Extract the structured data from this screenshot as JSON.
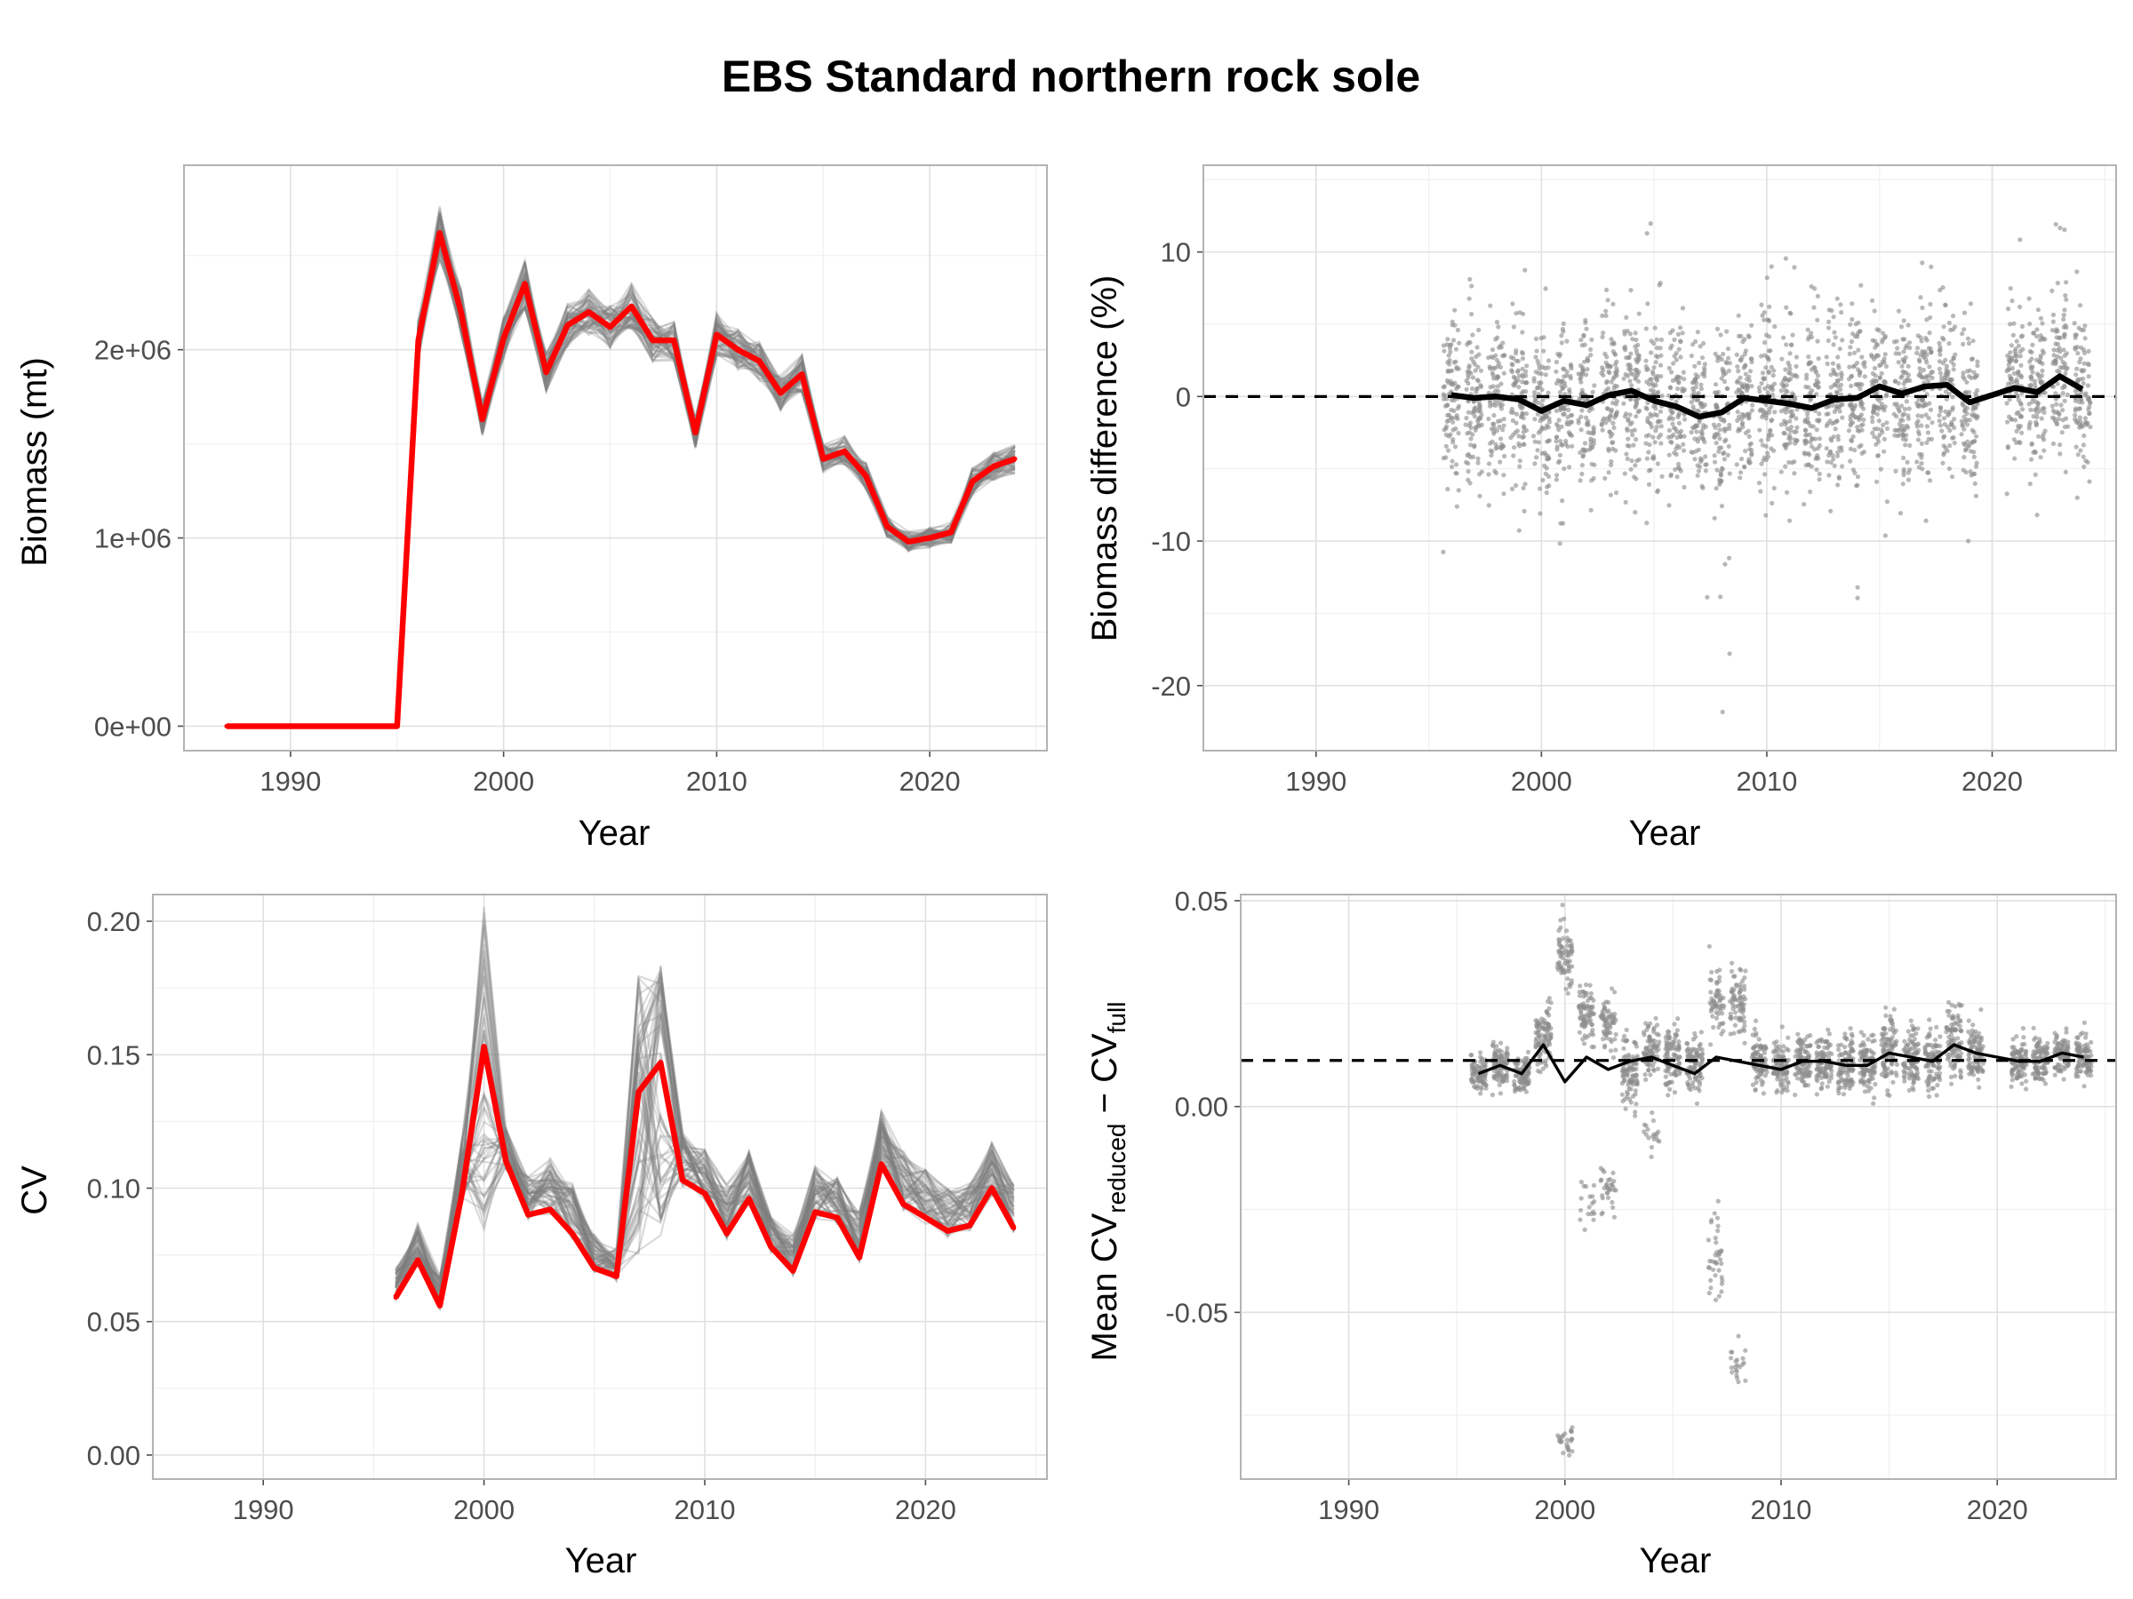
{
  "figure": {
    "title": "EBS Standard northern rock sole",
    "colors": {
      "replicate": "#7f7f7f",
      "full": "#ff0000",
      "mean": "#000000",
      "points": "#8c8c8c"
    }
  },
  "chart_data": [
    {
      "id": "biomass",
      "type": "line",
      "title": "",
      "xlabel": "Year",
      "ylabel": "Biomass (mt)",
      "xlim": [
        1985,
        2025.5
      ],
      "ylim": [
        -130000,
        2980000
      ],
      "x_ticks": [
        1990,
        2000,
        2010,
        2020
      ],
      "y_ticks": [
        0,
        1000000,
        2000000
      ],
      "y_tick_labels": [
        "0e+00",
        "1e+06",
        "2e+06"
      ],
      "x": [
        1987,
        1988,
        1989,
        1990,
        1991,
        1992,
        1993,
        1994,
        1995,
        1996,
        1997,
        1998,
        1999,
        2000,
        2001,
        2002,
        2003,
        2004,
        2005,
        2006,
        2007,
        2008,
        2009,
        2010,
        2011,
        2012,
        2013,
        2014,
        2015,
        2016,
        2017,
        2018,
        2019,
        2020,
        2021,
        2022,
        2023,
        2024
      ],
      "series": [
        {
          "role": "full survey",
          "color": "#ff0000",
          "values": [
            0,
            0,
            0,
            0,
            0,
            0,
            0,
            0,
            0,
            2050000,
            2620000,
            2200000,
            1630000,
            2060000,
            2350000,
            1880000,
            2130000,
            2200000,
            2120000,
            2230000,
            2050000,
            2050000,
            1560000,
            2080000,
            2000000,
            1940000,
            1770000,
            1870000,
            1420000,
            1460000,
            1330000,
            1060000,
            980000,
            1000000,
            1030000,
            1300000,
            1380000,
            1420000
          ]
        },
        {
          "role": "reduced-design replicates",
          "color": "#7f7f7f",
          "values": [
            0,
            0,
            0,
            0,
            0,
            0,
            0,
            0,
            0,
            2050000,
            2620000,
            2200000,
            1630000,
            2060000,
            2350000,
            1880000,
            2130000,
            2200000,
            2120000,
            2230000,
            2050000,
            2050000,
            1560000,
            2080000,
            2000000,
            1940000,
            1770000,
            1870000,
            1420000,
            1460000,
            1330000,
            1060000,
            980000,
            1000000,
            1030000,
            1300000,
            1380000,
            1420000
          ]
        }
      ]
    },
    {
      "id": "biomass-difference",
      "type": "scatter",
      "title": "",
      "xlabel": "Year",
      "ylabel": "Biomass difference (%)",
      "xlim": [
        1985,
        2025.5
      ],
      "ylim": [
        -24.5,
        16
      ],
      "x_ticks": [
        1990,
        2000,
        2010,
        2020
      ],
      "y_ticks": [
        -20,
        -10,
        0,
        10
      ],
      "reference_line": 0,
      "x": [
        1996,
        1997,
        1998,
        1999,
        2000,
        2001,
        2002,
        2003,
        2004,
        2005,
        2006,
        2007,
        2008,
        2009,
        2010,
        2011,
        2012,
        2013,
        2014,
        2015,
        2016,
        2017,
        2018,
        2019,
        2020,
        2021,
        2022,
        2023,
        2024
      ],
      "mean": [
        0.1,
        -0.1,
        0.0,
        -0.2,
        -1.0,
        -0.3,
        -0.6,
        0.1,
        0.4,
        -0.3,
        -0.7,
        -1.4,
        -1.1,
        -0.1,
        -0.3,
        -0.5,
        -0.8,
        -0.2,
        -0.1,
        0.7,
        0.2,
        0.7,
        0.8,
        -0.4,
        0.1,
        0.6,
        0.3,
        1.4,
        0.5
      ],
      "spread": {
        "low": [
          -11,
          -10,
          -9,
          -11,
          -22,
          -17,
          -10,
          -9,
          -9,
          -10,
          -12,
          -18,
          -23,
          -11,
          -11,
          -9,
          -12,
          -10,
          -15,
          -10,
          -11,
          -9,
          -9,
          -11,
          null,
          -9,
          -10,
          -8,
          -8
        ],
        "high": [
          6,
          9,
          9,
          10,
          14,
          11,
          9,
          13,
          9,
          12,
          8,
          12,
          11,
          13,
          11,
          12,
          14,
          12,
          9,
          12,
          10,
          12,
          13,
          12,
          null,
          11,
          10,
          13,
          12
        ]
      }
    },
    {
      "id": "cv",
      "type": "line",
      "title": "",
      "xlabel": "Year",
      "ylabel": "CV",
      "xlim": [
        1985,
        2025.5
      ],
      "ylim": [
        -0.009,
        0.21
      ],
      "x_ticks": [
        1990,
        2000,
        2010,
        2020
      ],
      "y_ticks": [
        0.0,
        0.05,
        0.1,
        0.15,
        0.2
      ],
      "y_tick_labels": [
        "0.00",
        "0.05",
        "0.10",
        "0.15",
        "0.20"
      ],
      "x": [
        1996,
        1997,
        1998,
        1999,
        2000,
        2001,
        2002,
        2003,
        2004,
        2005,
        2006,
        2007,
        2008,
        2009,
        2010,
        2011,
        2012,
        2013,
        2014,
        2015,
        2016,
        2017,
        2018,
        2019,
        2020,
        2021,
        2022,
        2023,
        2024
      ],
      "series": [
        {
          "role": "full survey",
          "color": "#ff0000",
          "values": [
            0.059,
            0.073,
            0.056,
            0.098,
            0.153,
            0.11,
            0.09,
            0.092,
            0.083,
            0.07,
            0.067,
            0.136,
            0.147,
            0.103,
            0.098,
            0.083,
            0.096,
            0.078,
            0.069,
            0.091,
            0.089,
            0.074,
            0.109,
            0.094,
            0.089,
            0.084,
            0.086,
            0.1,
            0.085
          ]
        },
        {
          "role": "reduced-design replicates",
          "color": "#7f7f7f",
          "values": [
            0.067,
            0.083,
            0.064,
            0.114,
            0.196,
            0.117,
            0.1,
            0.106,
            0.097,
            0.079,
            0.074,
            0.171,
            0.176,
            0.115,
            0.109,
            0.097,
            0.109,
            0.085,
            0.079,
            0.103,
            0.099,
            0.087,
            0.123,
            0.109,
            0.102,
            0.096,
            0.097,
            0.112,
            0.097
          ]
        }
      ]
    },
    {
      "id": "cv-difference",
      "type": "scatter",
      "title": "",
      "xlabel": "Year",
      "ylabel_main": "Mean CV",
      "ylabel_sub1": "reduced",
      "ylabel_mid": " − CV",
      "ylabel_sub2": "full",
      "xlim": [
        1985,
        2025.5
      ],
      "ylim": [
        -0.0905,
        0.0515
      ],
      "x_ticks": [
        1990,
        2000,
        2010,
        2020
      ],
      "y_ticks": [
        -0.05,
        0.0,
        0.05
      ],
      "y_tick_labels": [
        "-0.05",
        "0.00",
        "0.05"
      ],
      "reference_line": 0.0112,
      "x": [
        1996,
        1997,
        1998,
        1999,
        2000,
        2001,
        2002,
        2003,
        2004,
        2005,
        2006,
        2007,
        2008,
        2009,
        2010,
        2011,
        2012,
        2013,
        2014,
        2015,
        2016,
        2017,
        2018,
        2019,
        2020,
        2021,
        2022,
        2023,
        2024
      ],
      "mean": [
        0.008,
        0.01,
        0.008,
        0.015,
        0.006,
        0.012,
        0.009,
        0.011,
        0.012,
        0.01,
        0.008,
        0.012,
        0.011,
        0.01,
        0.009,
        0.011,
        0.011,
        0.01,
        0.01,
        0.013,
        0.012,
        0.011,
        0.015,
        0.013,
        0.012,
        0.011,
        0.011,
        0.013,
        0.012
      ],
      "spread": {
        "clusters": [
          [
            {
              "m": 0.008,
              "s": 0.003
            }
          ],
          [
            {
              "m": 0.01,
              "s": 0.004
            },
            {
              "m": -0.008,
              "s": 0.004,
              "f": 0.08
            }
          ],
          [
            {
              "m": 0.008,
              "s": 0.003
            }
          ],
          [
            {
              "m": 0.017,
              "s": 0.005
            }
          ],
          [
            {
              "m": 0.037,
              "s": 0.006,
              "f": 0.8
            },
            {
              "m": -0.081,
              "s": 0.003,
              "f": 0.2
            }
          ],
          [
            {
              "m": 0.022,
              "s": 0.005,
              "f": 0.75
            },
            {
              "m": -0.024,
              "s": 0.005,
              "f": 0.25
            }
          ],
          [
            {
              "m": 0.02,
              "s": 0.005,
              "f": 0.7
            },
            {
              "m": -0.02,
              "s": 0.004,
              "f": 0.3
            }
          ],
          [
            {
              "m": 0.008,
              "s": 0.006
            }
          ],
          [
            {
              "m": 0.014,
              "s": 0.005,
              "f": 0.8
            },
            {
              "m": -0.006,
              "s": 0.003,
              "f": 0.2
            }
          ],
          [
            {
              "m": 0.012,
              "s": 0.005
            }
          ],
          [
            {
              "m": 0.011,
              "s": 0.005
            }
          ],
          [
            {
              "m": 0.026,
              "s": 0.006,
              "f": 0.65
            },
            {
              "m": -0.037,
              "s": 0.007,
              "f": 0.35
            }
          ],
          [
            {
              "m": 0.025,
              "s": 0.006,
              "f": 0.8
            },
            {
              "m": -0.062,
              "s": 0.004,
              "f": 0.2
            }
          ],
          [
            {
              "m": 0.011,
              "s": 0.005
            }
          ],
          [
            {
              "m": 0.01,
              "s": 0.005
            }
          ],
          [
            {
              "m": 0.011,
              "s": 0.005
            }
          ],
          [
            {
              "m": 0.01,
              "s": 0.005
            }
          ],
          [
            {
              "m": 0.01,
              "s": 0.005
            }
          ],
          [
            {
              "m": 0.01,
              "s": 0.005
            }
          ],
          [
            {
              "m": 0.014,
              "s": 0.006
            }
          ],
          [
            {
              "m": 0.012,
              "s": 0.005
            }
          ],
          [
            {
              "m": 0.011,
              "s": 0.005
            }
          ],
          [
            {
              "m": 0.016,
              "s": 0.006
            }
          ],
          [
            {
              "m": 0.013,
              "s": 0.005
            }
          ],
          [],
          [
            {
              "m": 0.011,
              "s": 0.004
            }
          ],
          [
            {
              "m": 0.011,
              "s": 0.004
            }
          ],
          [
            {
              "m": 0.013,
              "s": 0.004
            }
          ],
          [
            {
              "m": 0.012,
              "s": 0.004
            }
          ]
        ]
      }
    }
  ]
}
